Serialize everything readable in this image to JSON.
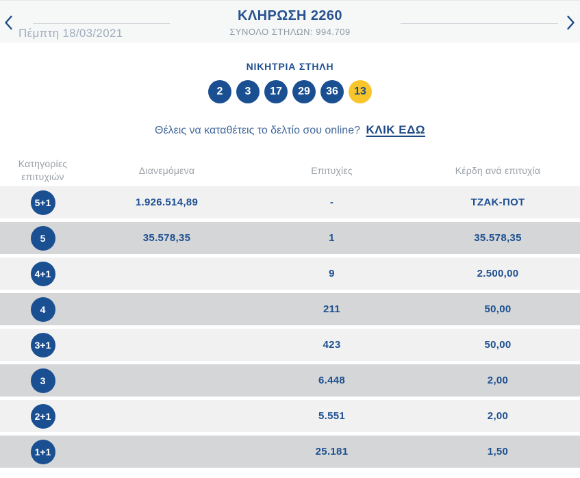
{
  "header": {
    "date": "Πέμπτη 18/03/2021",
    "title": "ΚΛΗΡΩΣΗ 2260",
    "total_columns": "ΣΥΝΟΛΟ ΣΤΗΛΩΝ: 994.709"
  },
  "winning": {
    "heading": "ΝΙΚΗΤΡΙΑ ΣΤΗΛΗ",
    "numbers": [
      "2",
      "3",
      "17",
      "29",
      "36"
    ],
    "joker": "13"
  },
  "cta": {
    "text": "Θέλεις να καταθέτεις το δελτίο σου online?",
    "link": "ΚΛΙΚ ΕΔΩ"
  },
  "table": {
    "headers": [
      "Κατηγορίες\nεπιτυχιών",
      "Διανεμόμενα",
      "Επιτυχίες",
      "Κέρδη ανά επιτυχία"
    ],
    "rows": [
      {
        "category": "5+1",
        "distributed": "1.926.514,89",
        "winners": "-",
        "prize": "ΤΖΑΚ-ΠΟΤ"
      },
      {
        "category": "5",
        "distributed": "35.578,35",
        "winners": "1",
        "prize": "35.578,35"
      },
      {
        "category": "4+1",
        "distributed": "",
        "winners": "9",
        "prize": "2.500,00"
      },
      {
        "category": "4",
        "distributed": "",
        "winners": "211",
        "prize": "50,00"
      },
      {
        "category": "3+1",
        "distributed": "",
        "winners": "423",
        "prize": "50,00"
      },
      {
        "category": "3",
        "distributed": "",
        "winners": "6.448",
        "prize": "2,00"
      },
      {
        "category": "2+1",
        "distributed": "",
        "winners": "5.551",
        "prize": "2,00"
      },
      {
        "category": "1+1",
        "distributed": "",
        "winners": "25.181",
        "prize": "1,50"
      }
    ]
  },
  "colors": {
    "primary_blue": "#1a4f92",
    "joker_yellow": "#f8c52b",
    "row_light": "#f1f1f2",
    "row_dark": "#d4d6d7",
    "muted_gray": "#9ba1a8"
  }
}
